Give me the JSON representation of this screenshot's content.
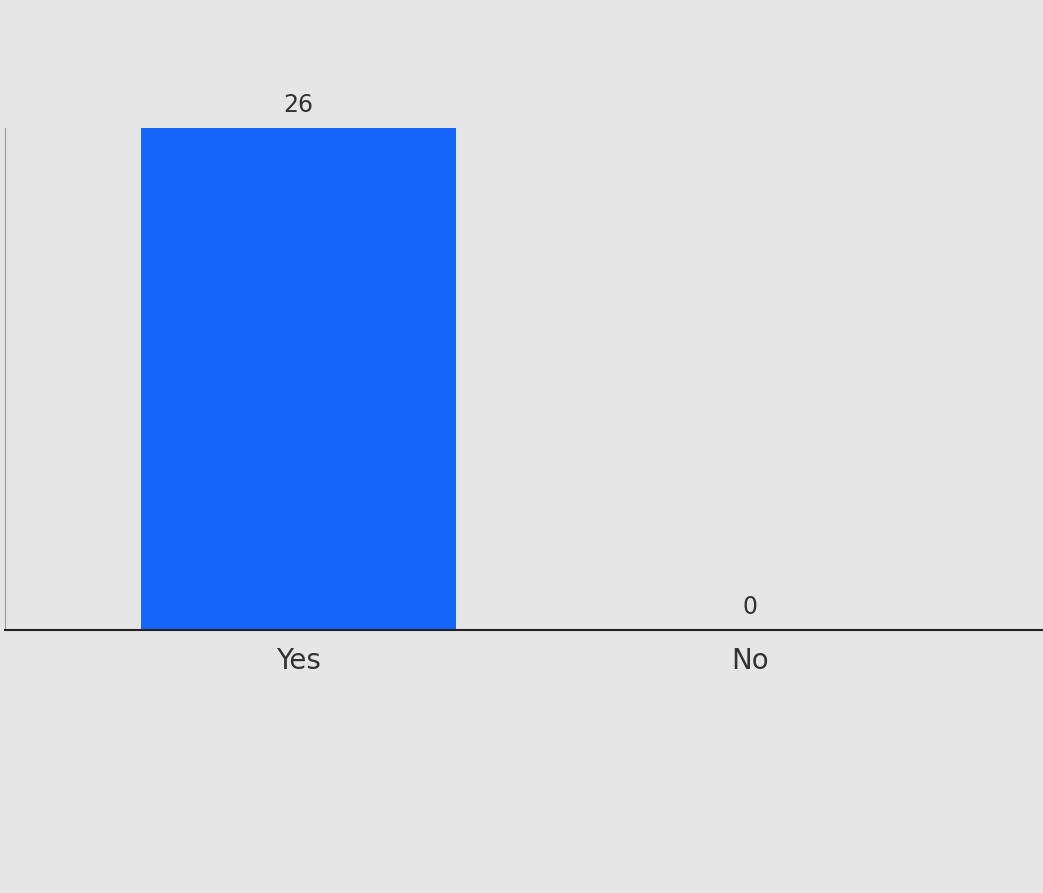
{
  "chart_data": {
    "type": "bar",
    "categories": [
      "Yes",
      "No"
    ],
    "values": [
      26,
      0
    ],
    "color": "#1766fb",
    "ylim": [
      0,
      26
    ],
    "grid": false,
    "data_labels": true,
    "tick_labels": "x"
  }
}
